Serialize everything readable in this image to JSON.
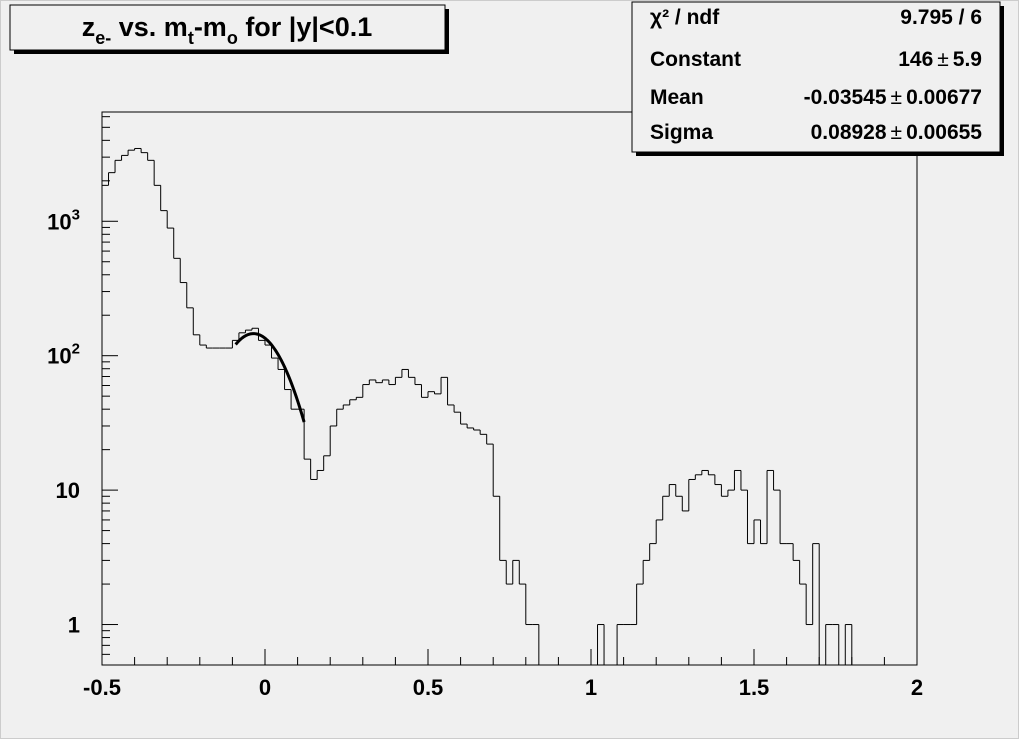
{
  "chart_data": {
    "type": "histogram",
    "title": [
      {
        "text": "z"
      },
      {
        "text": "e-",
        "sub": true
      },
      {
        "text": " vs. m"
      },
      {
        "text": "t",
        "sub": true
      },
      {
        "text": "-m"
      },
      {
        "text": "o",
        "sub": true
      },
      {
        "text": " for |y|<0.1"
      }
    ],
    "log_y": true,
    "color": "#000000",
    "bins": [
      -0.5,
      -0.48,
      -0.46,
      -0.44,
      -0.42,
      -0.4,
      -0.38,
      -0.36,
      -0.34,
      -0.32,
      -0.3,
      -0.28,
      -0.26,
      -0.24,
      -0.22,
      -0.2,
      -0.18,
      -0.16,
      -0.14,
      -0.12,
      -0.1,
      -0.08,
      -0.06,
      -0.04,
      -0.02,
      0,
      0.02,
      0.04,
      0.06,
      0.08,
      0.1,
      0.12,
      0.14,
      0.16,
      0.18,
      0.2,
      0.22,
      0.24,
      0.26,
      0.28,
      0.3,
      0.32,
      0.34,
      0.36,
      0.38,
      0.4,
      0.42,
      0.44,
      0.46,
      0.48,
      0.5,
      0.52,
      0.54,
      0.56,
      0.58,
      0.6,
      0.62,
      0.64,
      0.66,
      0.68,
      0.7,
      0.72,
      0.74,
      0.76,
      0.78,
      0.8,
      0.82,
      0.84,
      0.86,
      0.88,
      0.9,
      0.92,
      0.94,
      0.96,
      0.98,
      1,
      1.02,
      1.04,
      1.06,
      1.08,
      1.1,
      1.12,
      1.14,
      1.16,
      1.18,
      1.2,
      1.22,
      1.24,
      1.26,
      1.28,
      1.3,
      1.32,
      1.34,
      1.36,
      1.38,
      1.4,
      1.42,
      1.44,
      1.46,
      1.48,
      1.5,
      1.52,
      1.54,
      1.56,
      1.58,
      1.6,
      1.62,
      1.64,
      1.66,
      1.68,
      1.7,
      1.72,
      1.74,
      1.76,
      1.78,
      1.8,
      1.82,
      1.84,
      1.86,
      1.88,
      1.9,
      1.92,
      1.94,
      1.96,
      1.98,
      2
    ],
    "counts": [
      1850,
      2300,
      2840,
      3090,
      3380,
      3480,
      3240,
      2840,
      1850,
      1200,
      890,
      530,
      350,
      227,
      143,
      120,
      114,
      114,
      114,
      114,
      130,
      148,
      155,
      160,
      130,
      120,
      96,
      79,
      56,
      40,
      40,
      17,
      12,
      14,
      18,
      30,
      40,
      43,
      47,
      49,
      61,
      66,
      63,
      66,
      61,
      69,
      79,
      69,
      61,
      49,
      54,
      52,
      69,
      43,
      38,
      31,
      29,
      28,
      26,
      22,
      9,
      3,
      2,
      3,
      2,
      1,
      1,
      0,
      0,
      0,
      0,
      0,
      0,
      0,
      0,
      0,
      1,
      0,
      0,
      1,
      1,
      1,
      2,
      3,
      4,
      6,
      9,
      11,
      9,
      7,
      12,
      13,
      14,
      13,
      11,
      9,
      10,
      14,
      10,
      4,
      6,
      4,
      14,
      10,
      4,
      4,
      3,
      2,
      1,
      4,
      0,
      1,
      1,
      0,
      1,
      0,
      0,
      0,
      0,
      0,
      0,
      0,
      0,
      0,
      0
    ],
    "xlim": [
      -0.5,
      2
    ],
    "xticks": [
      -0.5,
      0,
      0.5,
      1,
      1.5,
      2
    ],
    "xticks_minor": [
      -0.4,
      -0.3,
      -0.2,
      -0.1,
      0.1,
      0.2,
      0.3,
      0.4,
      0.6,
      0.7,
      0.8,
      0.9,
      1.1,
      1.2,
      1.3,
      1.4,
      1.6,
      1.7,
      1.8,
      1.9
    ],
    "ylim": [
      0.5,
      6500
    ],
    "yticks": [
      1,
      10,
      {
        "value": 100,
        "label": "10",
        "sup": "2"
      },
      {
        "value": 1000,
        "label": "10",
        "sup": "3"
      }
    ],
    "yticks_minor": [
      0.6,
      0.7,
      0.8,
      0.9,
      2,
      3,
      4,
      5,
      6,
      7,
      8,
      9,
      20,
      30,
      40,
      50,
      60,
      70,
      80,
      90,
      200,
      300,
      400,
      500,
      600,
      700,
      800,
      900,
      2000,
      3000,
      4000,
      5000,
      6000
    ],
    "stats": [
      {
        "label": "χ² / ndf",
        "value": "9.795 / 6"
      },
      {
        "label": "Constant",
        "value": 146,
        "error": 5.9
      },
      {
        "label": "Mean",
        "value": -0.03545,
        "error": 0.00677
      },
      {
        "label": "Sigma",
        "value": 0.08928,
        "error": 0.00655
      }
    ],
    "plusminus": "±",
    "fit_range": [
      -0.09,
      0.12
    ]
  }
}
